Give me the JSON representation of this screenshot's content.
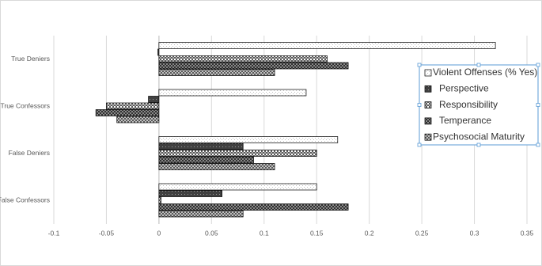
{
  "chart_data": {
    "type": "bar",
    "orientation": "horizontal",
    "categories": [
      "True Deniers",
      "True Confessors",
      "False Deniers",
      "False Confessors"
    ],
    "series": [
      {
        "name": "Violent Offenses (% Yes)",
        "color": "#bfbfbf",
        "values": [
          0.32,
          0.14,
          0.17,
          0.15
        ]
      },
      {
        "name": "Perspective",
        "color": "#404040",
        "values": [
          -0.001,
          -0.01,
          0.08,
          0.06
        ]
      },
      {
        "name": "Responsibility",
        "color": "#595959",
        "values": [
          0.16,
          -0.05,
          0.15,
          0.002
        ]
      },
      {
        "name": "Temperance",
        "color": "#303030",
        "values": [
          0.18,
          -0.06,
          0.09,
          0.18
        ]
      },
      {
        "name": "Psychosocial Maturity",
        "color": "#555555",
        "values": [
          0.11,
          -0.04,
          0.11,
          0.08
        ]
      }
    ],
    "xlim": [
      -0.1,
      0.35
    ],
    "xticks": [
      -0.1,
      -0.05,
      0,
      0.05,
      0.1,
      0.15,
      0.2,
      0.25,
      0.3,
      0.35
    ],
    "grid": true,
    "legend": "right"
  }
}
